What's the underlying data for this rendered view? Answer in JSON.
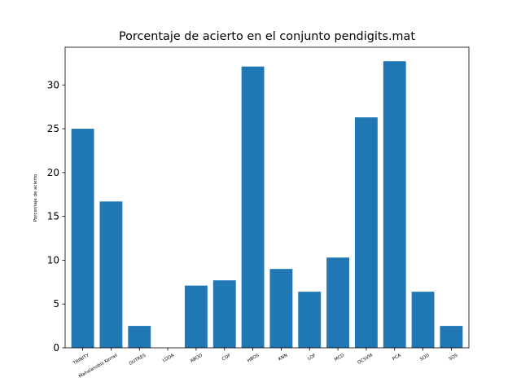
{
  "chart_data": {
    "type": "bar",
    "title": "Porcentaje de acierto en el conjunto pendigits.mat",
    "xlabel": "",
    "ylabel": "Porcentaje de acierto",
    "categories": [
      "TRINITY",
      "Mahalanobis Kernel",
      "OUTRES",
      "LODA",
      "ABOD",
      "COF",
      "HBOS",
      "KNN",
      "LOF",
      "MCD",
      "OCSVM",
      "PCA",
      "SOD",
      "SOS"
    ],
    "values": [
      25.0,
      16.7,
      2.5,
      0.0,
      7.1,
      7.7,
      32.1,
      9.0,
      6.4,
      10.3,
      26.3,
      32.7,
      6.4,
      2.5
    ],
    "ylim": [
      0,
      34.3
    ],
    "yticks": [
      0,
      5,
      10,
      15,
      20,
      25,
      30
    ],
    "grid": false,
    "bar_color": "#1f77b4"
  }
}
